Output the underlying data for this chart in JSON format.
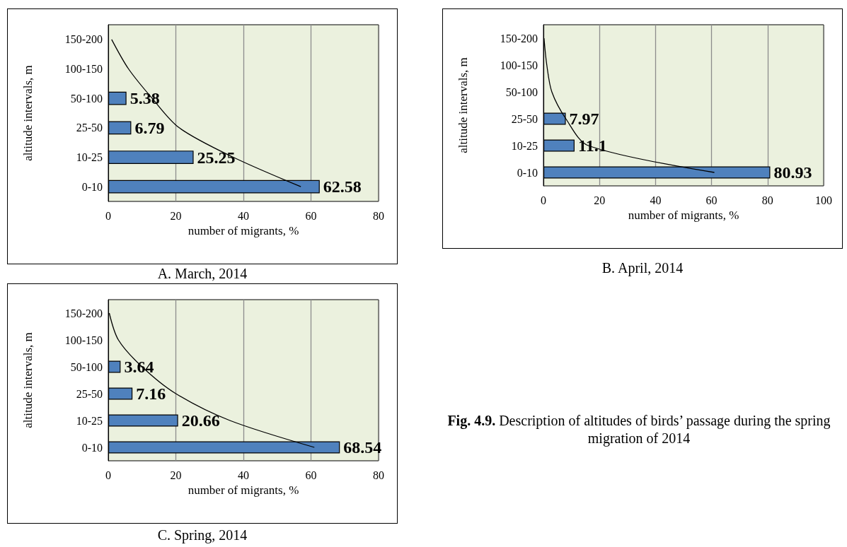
{
  "chart_data": [
    {
      "type": "bar",
      "orientation": "horizontal",
      "title": "A. March, 2014",
      "xlabel": "number of migrants, %",
      "ylabel": "altitude intervals, m",
      "categories": [
        "150-200",
        "100-150",
        "50-100",
        "25-50",
        "10-25",
        "0-10"
      ],
      "series": [
        {
          "color": "#4f81bd",
          "values": [
            null,
            null,
            5.38,
            6.79,
            25.25,
            62.58
          ],
          "value_labels": [
            null,
            null,
            "5.38",
            "6.79",
            "25.25",
            "62.58"
          ]
        },
        {
          "type": "line",
          "color": "#000000",
          "values": [
            1,
            6,
            13,
            21,
            37,
            57
          ]
        }
      ],
      "xlim": [
        0,
        80
      ],
      "xticks": [
        0,
        20,
        40,
        60,
        80
      ],
      "grid": "x",
      "marker": "none"
    },
    {
      "type": "bar",
      "orientation": "horizontal",
      "title": "B. April, 2014",
      "xlabel": "number of migrants, %",
      "ylabel": "altitude intervals, m",
      "categories": [
        "150-200",
        "100-150",
        "50-100",
        "25-50",
        "10-25",
        "0-10"
      ],
      "series": [
        {
          "color": "#4f81bd",
          "values": [
            null,
            null,
            null,
            7.97,
            11.1,
            80.93
          ],
          "value_labels": [
            null,
            null,
            null,
            "7.97",
            "11.1",
            "80.93"
          ]
        },
        {
          "type": "line",
          "color": "#000000",
          "values": [
            0.2,
            1.2,
            3,
            8,
            16,
            61
          ]
        }
      ],
      "xlim": [
        0,
        100
      ],
      "xticks": [
        0,
        20,
        40,
        60,
        80,
        100
      ],
      "grid": "x",
      "marker": "none"
    },
    {
      "type": "bar",
      "orientation": "horizontal",
      "title": "C. Spring, 2014",
      "xlabel": "number of migrants, %",
      "ylabel": "altitude intervals, m",
      "categories": [
        "150-200",
        "100-150",
        "50-100",
        "25-50",
        "10-25",
        "0-10"
      ],
      "series": [
        {
          "color": "#4f81bd",
          "values": [
            null,
            null,
            3.64,
            7.16,
            20.66,
            68.54
          ],
          "value_labels": [
            null,
            null,
            "3.64",
            "7.16",
            "20.66",
            "68.54"
          ]
        },
        {
          "type": "line",
          "color": "#000000",
          "values": [
            0.3,
            3,
            10,
            20,
            36,
            61
          ]
        }
      ],
      "xlim": [
        0,
        80
      ],
      "xticks": [
        0,
        20,
        40,
        60,
        80
      ],
      "grid": "x",
      "marker": "none"
    },
    {
      "type": "other",
      "annotations": [
        "Fig. 4.9.",
        "Description of altitudes of birds’ passage during the spring migration of 2014"
      ]
    }
  ]
}
